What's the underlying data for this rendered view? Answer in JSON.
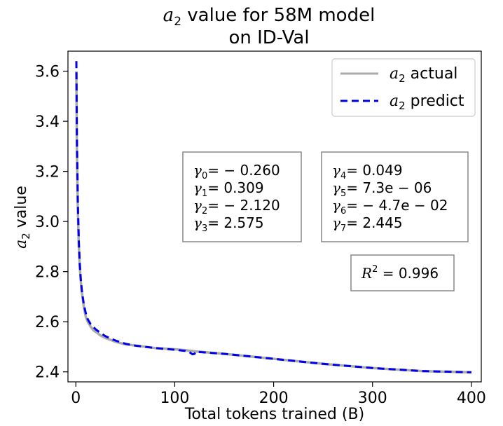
{
  "chart_data": {
    "type": "line",
    "title_line1": "value for 58M model",
    "title_line2": "on ID-Val",
    "title_symbol": "a",
    "title_symbol_sub": "2",
    "xlabel": "Total tokens trained (B)",
    "ylabel_symbol": "a",
    "ylabel_symbol_sub": "2",
    "ylabel_text": "value",
    "xlim": [
      -8,
      410
    ],
    "ylim": [
      2.36,
      3.68
    ],
    "xticks": [
      0,
      100,
      200,
      300,
      400
    ],
    "xtick_labels": [
      "0",
      "100",
      "200",
      "300",
      "400"
    ],
    "yticks": [
      2.4,
      2.6,
      2.8,
      3.0,
      3.2,
      3.4,
      3.6
    ],
    "ytick_labels": [
      "2.4",
      "2.6",
      "2.8",
      "3.0",
      "3.2",
      "3.4",
      "3.6"
    ],
    "series": [
      {
        "name": "actual",
        "color": "#aaaaaa",
        "style": "solid",
        "x": [
          0.5,
          1,
          2,
          3,
          4,
          5,
          6,
          8,
          10,
          12,
          15,
          18,
          20,
          25,
          30,
          40,
          50,
          60,
          80,
          100,
          110,
          120,
          150,
          200,
          250,
          300,
          350,
          400
        ],
        "y": [
          3.6,
          3.3,
          3.05,
          2.9,
          2.82,
          2.76,
          2.72,
          2.66,
          2.62,
          2.6,
          2.58,
          2.565,
          2.56,
          2.545,
          2.535,
          2.52,
          2.51,
          2.505,
          2.495,
          2.49,
          2.487,
          2.482,
          2.472,
          2.452,
          2.432,
          2.415,
          2.403,
          2.398
        ]
      },
      {
        "name": "predict",
        "color": "#0000ee",
        "style": "dashed",
        "x": [
          0.5,
          1,
          2,
          3,
          4,
          5,
          6,
          8,
          10,
          12,
          15,
          18,
          20,
          25,
          30,
          40,
          50,
          60,
          80,
          100,
          110,
          115,
          118,
          120,
          121,
          150,
          200,
          250,
          300,
          350,
          400
        ],
        "y": [
          3.64,
          3.35,
          3.08,
          2.92,
          2.83,
          2.77,
          2.725,
          2.67,
          2.635,
          2.61,
          2.59,
          2.578,
          2.57,
          2.555,
          2.542,
          2.525,
          2.512,
          2.505,
          2.495,
          2.488,
          2.484,
          2.478,
          2.47,
          2.472,
          2.48,
          2.472,
          2.452,
          2.432,
          2.415,
          2.403,
          2.398
        ]
      }
    ],
    "legend": {
      "position": "top-right",
      "entries": [
        {
          "symbol": "a",
          "sub": "2",
          "text": "actual"
        },
        {
          "symbol": "a",
          "sub": "2",
          "text": "predict"
        }
      ]
    },
    "annotations": {
      "box1": [
        {
          "greek": "γ",
          "sub": "0",
          "value": "= − 0.260"
        },
        {
          "greek": "γ",
          "sub": "1",
          "value": "= 0.309"
        },
        {
          "greek": "γ",
          "sub": "2",
          "value": "= − 2.120"
        },
        {
          "greek": "γ",
          "sub": "3",
          "value": "= 2.575"
        }
      ],
      "box2": [
        {
          "greek": "γ",
          "sub": "4",
          "value": "= 0.049"
        },
        {
          "greek": "γ",
          "sub": "5",
          "value": "= 7.3e − 06"
        },
        {
          "greek": "γ",
          "sub": "6",
          "value": "= − 4.7e − 02"
        },
        {
          "greek": "γ",
          "sub": "7",
          "value": "= 2.445"
        }
      ],
      "r2": {
        "symbol": "R",
        "sup": "2",
        "value": "= 0.996"
      }
    }
  }
}
